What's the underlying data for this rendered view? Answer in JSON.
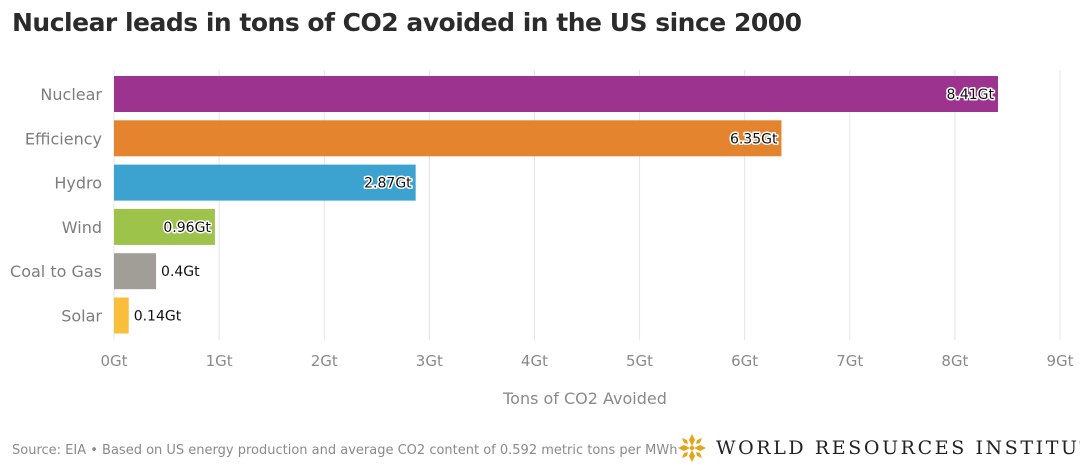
{
  "title": "Nuclear leads in tons of CO2 avoided in the US since 2000",
  "source": "Source: EIA • Based on US energy production and average CO2 content of 0.592 metric tons per MWh",
  "logo_text": "WORLD RESOURCES INSTITUTE",
  "chart_data": {
    "type": "bar",
    "orientation": "horizontal",
    "title": "Nuclear leads in tons of CO2 avoided in the US since 2000",
    "xlabel": "Tons of CO2 Avoided",
    "ylabel": "",
    "xlim": [
      0,
      9
    ],
    "x_ticks": [
      0,
      1,
      2,
      3,
      4,
      5,
      6,
      7,
      8,
      9
    ],
    "x_tick_labels": [
      "0Gt",
      "1Gt",
      "2Gt",
      "3Gt",
      "4Gt",
      "5Gt",
      "6Gt",
      "7Gt",
      "8Gt",
      "9Gt"
    ],
    "grid": true,
    "categories": [
      "Nuclear",
      "Efficiency",
      "Hydro",
      "Wind",
      "Coal to Gas",
      "Solar"
    ],
    "values": [
      8.41,
      6.35,
      2.87,
      0.96,
      0.4,
      0.14
    ],
    "data_labels": [
      "8.41Gt",
      "6.35Gt",
      "2.87Gt",
      "0.96Gt",
      "0.4Gt",
      "0.14Gt"
    ],
    "colors": [
      "#9c348f",
      "#e5842f",
      "#3ca2d0",
      "#9ec34a",
      "#a19e98",
      "#f8be3c"
    ]
  }
}
